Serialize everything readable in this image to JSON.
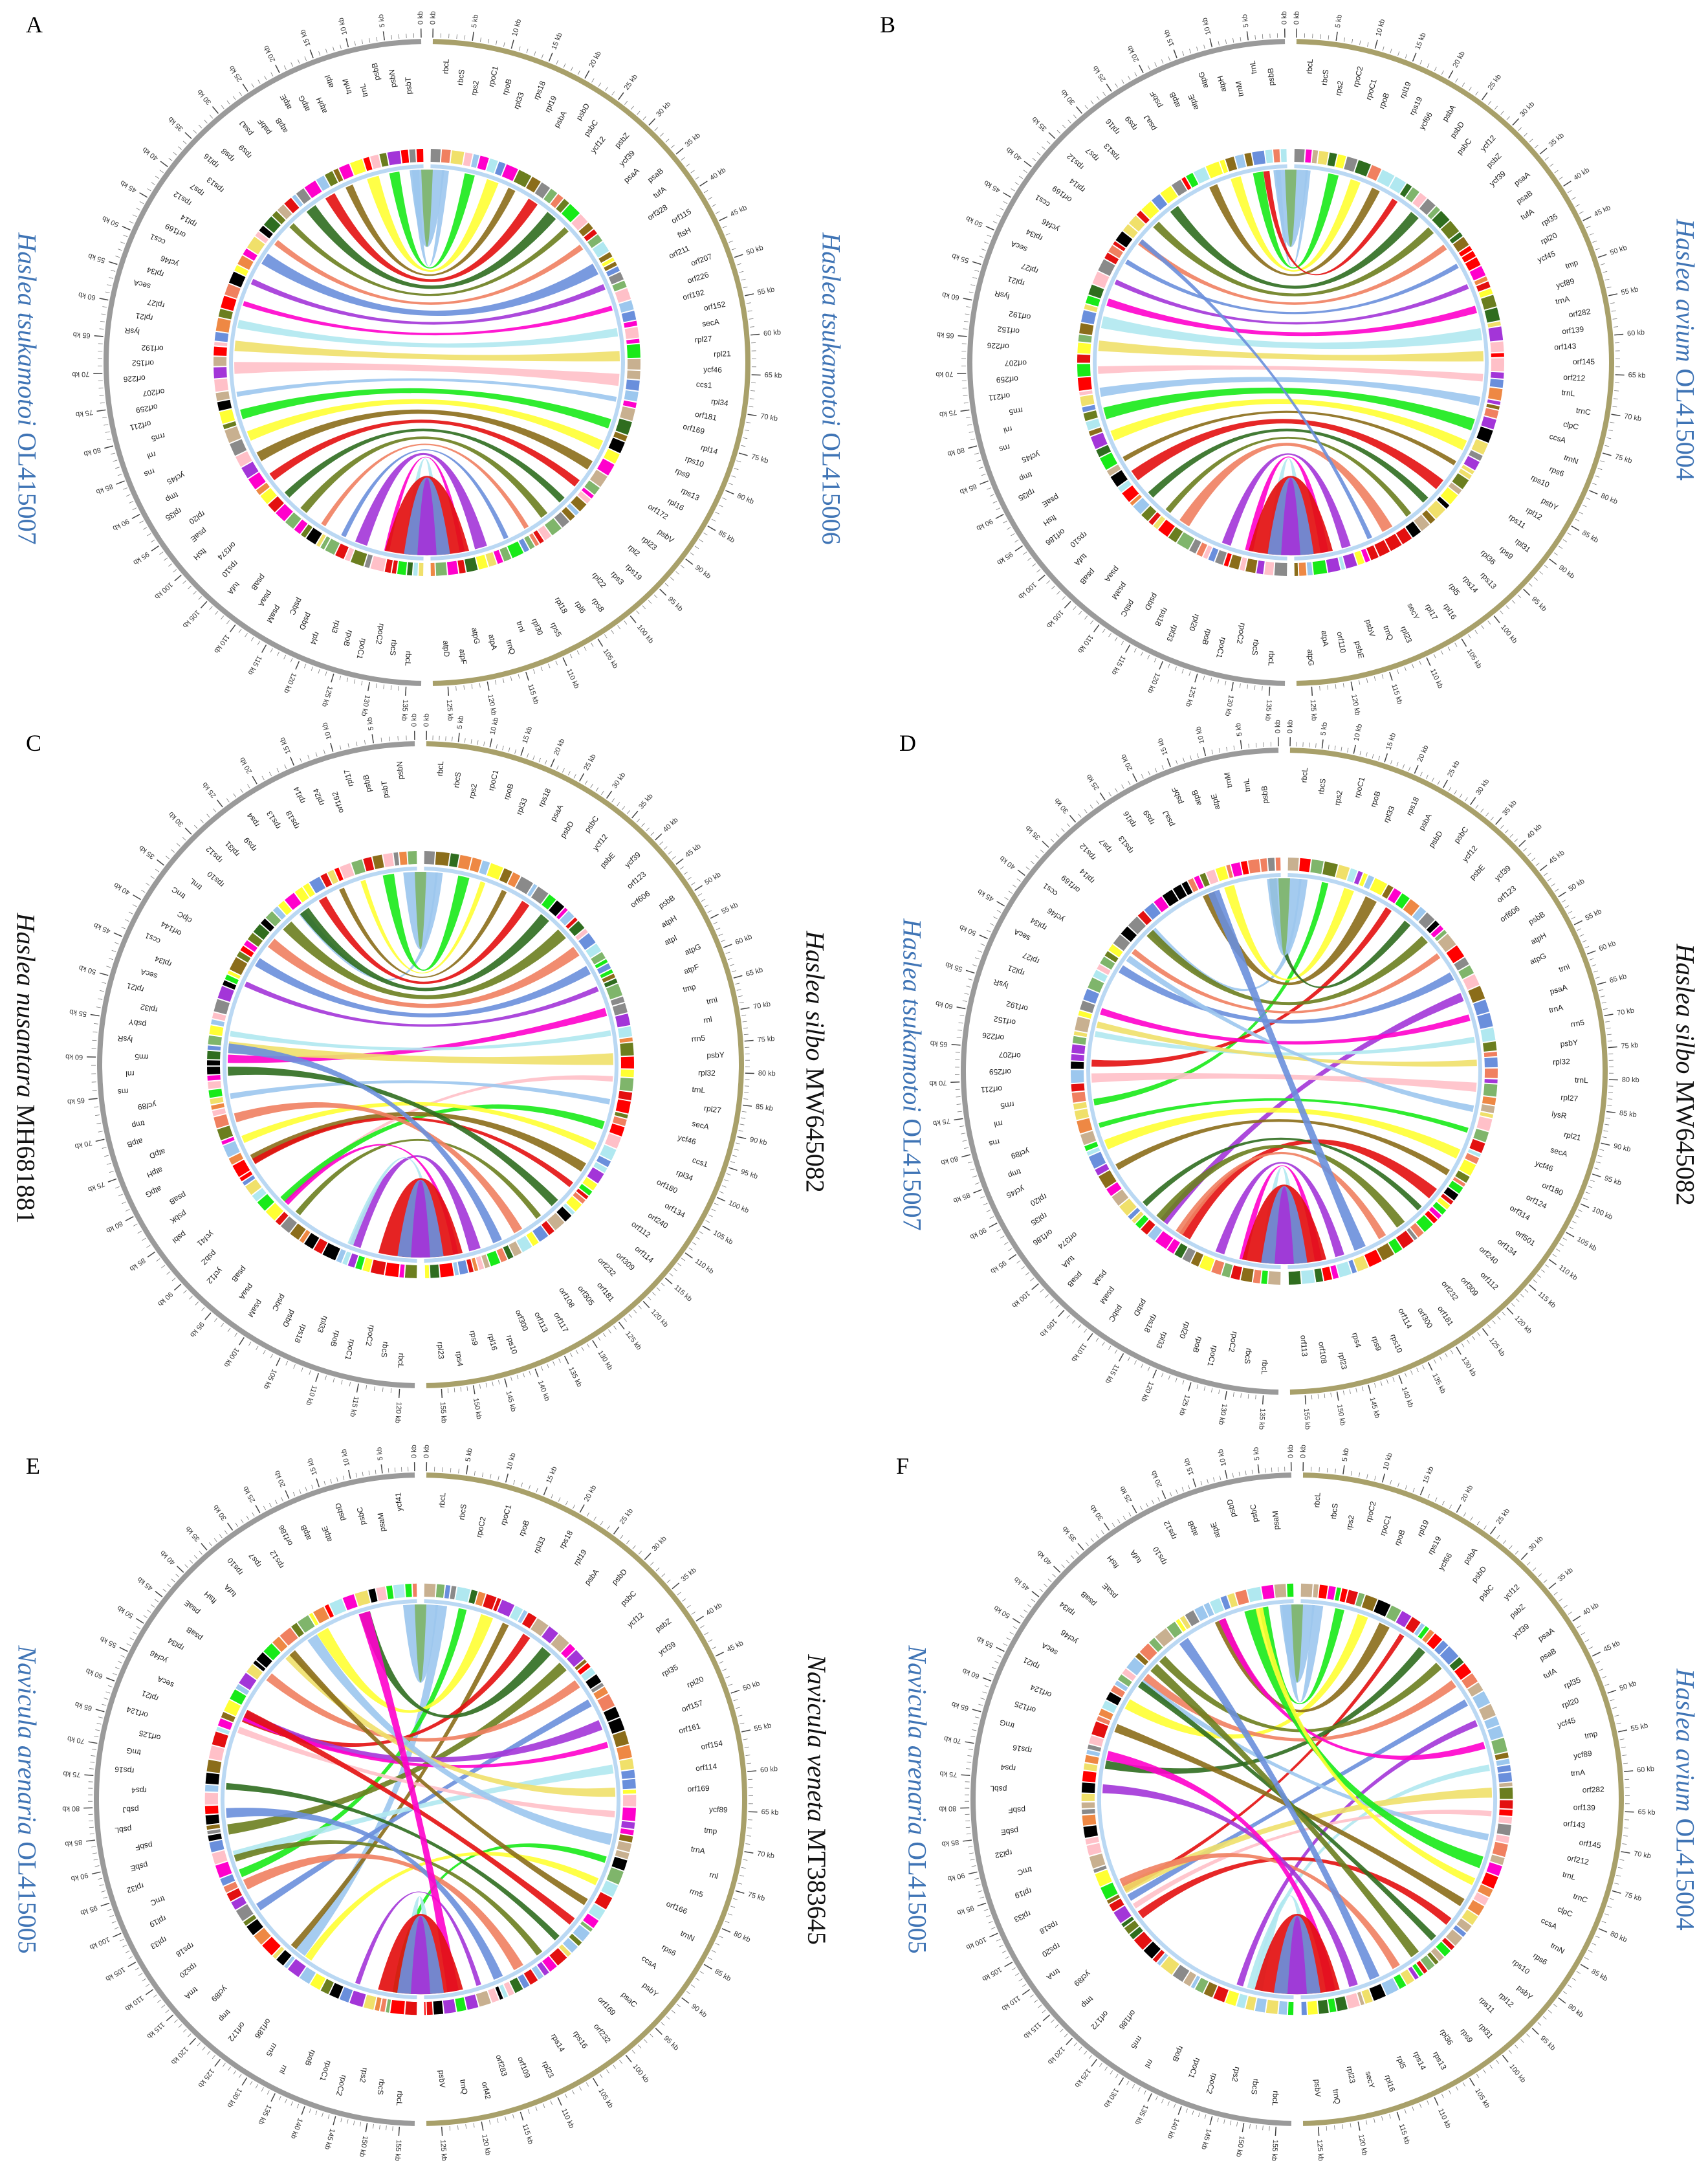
{
  "panels": [
    {
      "letter": "A",
      "left_species": "Haslea tsukamotoi",
      "left_accession": "OL415007",
      "left_color": "#3f74b5",
      "right_species": "Haslea tsukamotoi",
      "right_accession": "OL415006",
      "right_color": "#3f74b5",
      "kb_ticks_left": [
        "0 kb",
        "5 kb",
        "10 kb",
        "15 kb",
        "20 kb",
        "25 kb",
        "30 kb",
        "35 kb",
        "40 kb",
        "45 kb",
        "50 kb",
        "55 kb",
        "60 kb",
        "65 kb",
        "70 kb",
        "75 kb",
        "80 kb",
        "85 kb",
        "90 kb",
        "95 kb",
        "100 kb",
        "105 kb",
        "110 kb",
        "115 kb",
        "120 kb",
        "125 kb",
        "130 kb",
        "135 kb"
      ],
      "kb_ticks_right": [
        "0 kb",
        "5 kb",
        "10 kb",
        "15 kb",
        "20 kb",
        "25 kb",
        "30 kb",
        "35 kb",
        "40 kb",
        "45 kb",
        "50 kb",
        "55 kb",
        "60 kb",
        "65 kb",
        "70 kb",
        "75 kb",
        "80 kb",
        "85 kb",
        "90 kb",
        "95 kb",
        "100 kb",
        "105 kb",
        "110 kb",
        "115 kb",
        "120 kb",
        "125 kb"
      ],
      "left_genes": [
        "rbcL",
        "rbcS",
        "rpoC2",
        "rpoC1",
        "rpoB",
        "rpl3",
        "rpl4",
        "psbD",
        "psbC",
        "psaM",
        "psaA",
        "psaB",
        "tufA",
        "rps10",
        "orf374",
        "ftsH",
        "psaE",
        "rpl20",
        "rpl35",
        "tmp",
        "ycf45",
        "rns",
        "rnl",
        "rrn5",
        "orf211",
        "orf259",
        "orf207",
        "orf226",
        "orf152",
        "orf192",
        "lysR",
        "rpl21",
        "rpl27",
        "secA",
        "rpl34",
        "ycf46",
        "ccs1",
        "orf169",
        "rpl14",
        "rps12",
        "rps7",
        "rps13",
        "rpl16",
        "rps8",
        "rps9",
        "psaJ",
        "psbF",
        "atpB",
        "atpE",
        "atpG",
        "atpH",
        "atpI",
        "trnM",
        "trnL",
        "psbB",
        "psbN",
        "psbT"
      ],
      "right_genes": [
        "rbcL",
        "rbcS",
        "rps2",
        "rpoC1",
        "rpoB",
        "rpl33",
        "rps18",
        "rpl19",
        "psbA",
        "psbD",
        "psbC",
        "ycf12",
        "psbZ",
        "ycf39",
        "psaA",
        "psaB",
        "tufA",
        "orf328",
        "orf115",
        "ftsH",
        "orf211",
        "orf207",
        "orf226",
        "orf192",
        "orf152",
        "secA",
        "rpl27",
        "rpl21",
        "ycf46",
        "ccs1",
        "rpl34",
        "orf181",
        "orf169",
        "rpl14",
        "rps10",
        "rps9",
        "rps13",
        "rpl16",
        "orf172",
        "psbV",
        "rpl23",
        "rpl2",
        "rps19",
        "rps3",
        "rpl22",
        "rps8",
        "rpl6",
        "rpl18",
        "rps5",
        "rpl30",
        "trnI",
        "trnQ",
        "atpA",
        "atpG",
        "atpF",
        "atpD"
      ]
    },
    {
      "letter": "B",
      "left_species": "",
      "left_accession": "",
      "left_color": "#3f74b5",
      "right_species": "Haslea avium",
      "right_accession": "OL415004",
      "right_color": "#3f74b5",
      "kb_ticks_left": [
        "0 kb",
        "5 kb",
        "10 kb",
        "15 kb",
        "20 kb",
        "25 kb",
        "30 kb",
        "35 kb",
        "40 kb",
        "45 kb",
        "50 kb",
        "55 kb",
        "60 kb",
        "65 kb",
        "70 kb",
        "75 kb",
        "80 kb",
        "85 kb",
        "90 kb",
        "95 kb",
        "100 kb",
        "105 kb",
        "110 kb",
        "115 kb",
        "120 kb",
        "125 kb",
        "130 kb",
        "135 kb"
      ],
      "kb_ticks_right": [
        "0 kb",
        "5 kb",
        "10 kb",
        "15 kb",
        "20 kb",
        "25 kb",
        "30 kb",
        "35 kb",
        "40 kb",
        "45 kb",
        "50 kb",
        "55 kb",
        "60 kb",
        "65 kb",
        "70 kb",
        "75 kb",
        "80 kb",
        "85 kb",
        "90 kb",
        "95 kb",
        "100 kb",
        "105 kb",
        "110 kb",
        "115 kb",
        "120 kb",
        "125 kb"
      ],
      "left_genes": [
        "rbcL",
        "rbcS",
        "rpoC2",
        "rpoC1",
        "rpoB",
        "rpl20",
        "rpl33",
        "rps18",
        "psbD",
        "psbC",
        "psaM",
        "psaA",
        "psaB",
        "tufA",
        "rps10",
        "orf186",
        "ftsH",
        "psaE",
        "rpl35",
        "tmp",
        "ycf45",
        "rns",
        "rnl",
        "rrn5",
        "orf211",
        "orf259",
        "orf207",
        "orf226",
        "orf152",
        "orf192",
        "lysR",
        "rpl21",
        "rpl27",
        "secA",
        "rpl34",
        "ycf46",
        "ccs1",
        "orf169",
        "rpl14",
        "rps12",
        "rps7",
        "rps13",
        "rpl16",
        "rps9",
        "psaJ",
        "psbF",
        "atpB",
        "atpE",
        "atpG",
        "atpH",
        "trnM",
        "trnL",
        "psbB"
      ],
      "right_genes": [
        "rbcL",
        "rbcS",
        "rps2",
        "rpoC2",
        "rpoC1",
        "rpoB",
        "rpl19",
        "rps19",
        "ycf66",
        "psbA",
        "psbD",
        "psbC",
        "ycf12",
        "psbZ",
        "ycf39",
        "psaA",
        "psaB",
        "tufA",
        "rpl35",
        "rpl20",
        "ycf45",
        "tmp",
        "ycf89",
        "trnA",
        "orf282",
        "orf139",
        "orf143",
        "orf145",
        "orf212",
        "trnL",
        "trnC",
        "clpC",
        "ccsA",
        "trnN",
        "rps6",
        "rps10",
        "psbY",
        "rpl12",
        "rps11",
        "rpl31",
        "rps9",
        "rpl36",
        "rps13",
        "rps14",
        "rpl5",
        "rpl16",
        "rpl17",
        "secY",
        "rpl23",
        "trnQ",
        "psbV",
        "psbE",
        "orf110",
        "atpA",
        "atpG"
      ]
    },
    {
      "letter": "C",
      "left_species": "Haslea nusantara",
      "left_accession": "MH681881",
      "left_color": "#111111",
      "right_species": "Haslea silbo",
      "right_accession": "MW645082",
      "right_color": "#111111",
      "kb_ticks_left": [
        "0 kb",
        "5 kb",
        "10 kb",
        "15 kb",
        "20 kb",
        "25 kb",
        "30 kb",
        "35 kb",
        "40 kb",
        "45 kb",
        "50 kb",
        "55 kb",
        "60 kb",
        "65 kb",
        "70 kb",
        "75 kb",
        "80 kb",
        "85 kb",
        "90 kb",
        "95 kb",
        "100 kb",
        "105 kb",
        "110 kb",
        "115 kb",
        "120 kb"
      ],
      "kb_ticks_right": [
        "0 kb",
        "5 kb",
        "10 kb",
        "15 kb",
        "20 kb",
        "25 kb",
        "30 kb",
        "35 kb",
        "40 kb",
        "45 kb",
        "50 kb",
        "55 kb",
        "60 kb",
        "65 kb",
        "70 kb",
        "75 kb",
        "80 kb",
        "85 kb",
        "90 kb",
        "95 kb",
        "100 kb",
        "105 kb",
        "110 kb",
        "115 kb",
        "120 kb",
        "125 kb",
        "130 kb",
        "135 kb",
        "140 kb",
        "145 kb",
        "150 kb",
        "155 kb"
      ],
      "left_genes": [
        "rbcL",
        "rbcS",
        "rpoC2",
        "rpoC1",
        "rpoB",
        "rpl33",
        "rps18",
        "psbD",
        "psbC",
        "psaM",
        "psaA",
        "psaB",
        "ycf12",
        "psbZ",
        "ycf41",
        "psbI",
        "psbK",
        "psaB",
        "atpG",
        "atpH",
        "atpD",
        "atpB",
        "tmp",
        "ycf89",
        "rns",
        "rnl",
        "rrn5",
        "lysR",
        "psbY",
        "rpl32",
        "rpl21",
        "secA",
        "rpl34",
        "ccs1",
        "orf144",
        "clpC",
        "trnC",
        "trnL",
        "rps10",
        "rps12",
        "rpl31",
        "rps9",
        "rps4",
        "rps13",
        "rps18",
        "rpl14",
        "rpl24",
        "orf162",
        "rpl17",
        "psbB",
        "psbT",
        "psbN"
      ],
      "right_genes": [
        "rbcL",
        "rbcS",
        "rps2",
        "rpoC1",
        "rpoB",
        "rpl33",
        "rps18",
        "psaA",
        "psbD",
        "psbC",
        "ycf12",
        "psbE",
        "ycf39",
        "orf123",
        "orf606",
        "psbB",
        "atpH",
        "atpI",
        "atpG",
        "atpF",
        "tmp",
        "trnI",
        "rnl",
        "rrn5",
        "psbY",
        "rpl32",
        "trnL",
        "rpl27",
        "secA",
        "ycf46",
        "ccs1",
        "rpl34",
        "orf180",
        "orf134",
        "orf240",
        "orf112",
        "orf114",
        "orf309",
        "orf232",
        "orf181",
        "orf305",
        "orf108",
        "orf117",
        "orf113",
        "orf300",
        "rps10",
        "rpl16",
        "rps9",
        "rps4",
        "rpl23"
      ]
    },
    {
      "letter": "D",
      "left_species": "Haslea tsukamotoi",
      "left_accession": "OL415007",
      "left_color": "#3f74b5",
      "right_species": "Haslea silbo",
      "right_accession": "MW645082",
      "right_color": "#111111",
      "kb_ticks_left": [
        "0 kb",
        "5 kb",
        "10 kb",
        "15 kb",
        "20 kb",
        "25 kb",
        "30 kb",
        "35 kb",
        "40 kb",
        "45 kb",
        "50 kb",
        "55 kb",
        "60 kb",
        "65 kb",
        "70 kb",
        "75 kb",
        "80 kb",
        "85 kb",
        "90 kb",
        "95 kb",
        "100 kb",
        "105 kb",
        "110 kb",
        "115 kb",
        "120 kb",
        "125 kb",
        "130 kb",
        "135 kb"
      ],
      "kb_ticks_right": [
        "0 kb",
        "5 kb",
        "10 kb",
        "15 kb",
        "20 kb",
        "25 kb",
        "30 kb",
        "35 kb",
        "40 kb",
        "45 kb",
        "50 kb",
        "55 kb",
        "60 kb",
        "65 kb",
        "70 kb",
        "75 kb",
        "80 kb",
        "85 kb",
        "90 kb",
        "95 kb",
        "100 kb",
        "105 kb",
        "110 kb",
        "115 kb",
        "120 kb",
        "125 kb",
        "130 kb",
        "135 kb",
        "140 kb",
        "145 kb",
        "150 kb",
        "155 kb"
      ],
      "left_genes": [
        "rbcL",
        "rbcS",
        "rpoC2",
        "rpoC1",
        "rpoB",
        "rpl20",
        "rpl33",
        "rps18",
        "psbD",
        "psbC",
        "psaM",
        "psaA",
        "psaB",
        "tufA",
        "orf374",
        "orf186",
        "rpl35",
        "rpl20",
        "ycf45",
        "tmp",
        "ycf89",
        "rns",
        "rnl",
        "rrn5",
        "orf211",
        "orf259",
        "orf207",
        "orf226",
        "orf152",
        "orf192",
        "lysR",
        "rpl21",
        "rpl27",
        "secA",
        "rpl34",
        "ycf46",
        "ccs1",
        "orf169",
        "rpl14",
        "rps12",
        "rps7",
        "rps13",
        "rpl16",
        "rps9",
        "psaJ",
        "psbF",
        "atpB",
        "atpE",
        "trnM",
        "trnL",
        "psbB"
      ],
      "right_genes": [
        "rbcL",
        "rbcS",
        "rps2",
        "rpoC1",
        "rpoB",
        "rpl33",
        "rps18",
        "psbA",
        "psbD",
        "psbC",
        "ycf12",
        "psbE",
        "ycf39",
        "orf123",
        "orf606",
        "psbB",
        "atpH",
        "atpG",
        "trnI",
        "psaA",
        "trnA",
        "rrn5",
        "psbY",
        "rpl32",
        "trnL",
        "rpl27",
        "lysR",
        "rpl21",
        "secA",
        "ycf46",
        "orf180",
        "orf124",
        "orf314",
        "orf501",
        "orf134",
        "orf240",
        "orf112",
        "orf309",
        "orf232",
        "orf181",
        "orf300",
        "orf114",
        "rps10",
        "rps9",
        "rps4",
        "rpl23",
        "orf108",
        "orf113"
      ]
    },
    {
      "letter": "E",
      "left_species": "Navicula arenaria",
      "left_accession": "OL415005",
      "left_color": "#3f74b5",
      "right_species": "Navicula veneta",
      "right_accession": "MT383645",
      "right_color": "#111111",
      "kb_ticks_left": [
        "0 kb",
        "5 kb",
        "10 kb",
        "15 kb",
        "20 kb",
        "25 kb",
        "30 kb",
        "35 kb",
        "40 kb",
        "45 kb",
        "50 kb",
        "55 kb",
        "60 kb",
        "65 kb",
        "70 kb",
        "75 kb",
        "80 kb",
        "85 kb",
        "90 kb",
        "95 kb",
        "100 kb",
        "105 kb",
        "110 kb",
        "115 kb",
        "120 kb",
        "125 kb",
        "130 kb",
        "135 kb",
        "140 kb",
        "145 kb",
        "150 kb",
        "155 kb"
      ],
      "kb_ticks_right": [
        "0 kb",
        "5 kb",
        "10 kb",
        "15 kb",
        "20 kb",
        "25 kb",
        "30 kb",
        "35 kb",
        "40 kb",
        "45 kb",
        "50 kb",
        "55 kb",
        "60 kb",
        "65 kb",
        "70 kb",
        "75 kb",
        "80 kb",
        "85 kb",
        "90 kb",
        "95 kb",
        "100 kb",
        "105 kb",
        "110 kb",
        "115 kb",
        "120 kb",
        "125 kb"
      ],
      "left_genes": [
        "rbcL",
        "rbcS",
        "rps2",
        "rpoC2",
        "rpoC1",
        "rpoB",
        "rnl",
        "rrn5",
        "orf186",
        "orf172",
        "tmp",
        "ycf89",
        "trnA",
        "rps20",
        "rps18",
        "rpl33",
        "rpl19",
        "trnC",
        "rpl32",
        "psbE",
        "psbF",
        "psbL",
        "psbJ",
        "rps4",
        "rps16",
        "tmG",
        "orf125",
        "orf124",
        "rpl21",
        "secA",
        "ycf46",
        "rpl34",
        "psaB",
        "psaE",
        "ftsH",
        "tufA",
        "rps10",
        "rps7",
        "rps12",
        "orf186",
        "atpB",
        "atpE",
        "psbD",
        "psbC",
        "psaM",
        "ycf41"
      ],
      "right_genes": [
        "rbcL",
        "rbcS",
        "rpoC2",
        "rpoC1",
        "rpoB",
        "rpl33",
        "rps18",
        "rpl19",
        "psbA",
        "psbD",
        "psbC",
        "ycf12",
        "psbZ",
        "ycf39",
        "rpl35",
        "rpl20",
        "orf157",
        "orf161",
        "orf154",
        "orf114",
        "orf169",
        "ycf89",
        "tmp",
        "trnA",
        "rnl",
        "rrn5",
        "orf166",
        "trnN",
        "rps6",
        "ccsA",
        "psbY",
        "psaC",
        "orf169",
        "orf232",
        "rps16",
        "rps14",
        "rpl23",
        "orf109",
        "orf283",
        "orf42",
        "trnQ",
        "psbV"
      ]
    },
    {
      "letter": "F",
      "left_species": "Navicula arenaria",
      "left_accession": "OL415005",
      "left_color": "#3f74b5",
      "right_species": "Haslea avium",
      "right_accession": "OL415004",
      "right_color": "#3f74b5",
      "kb_ticks_left": [
        "0 kb",
        "5 kb",
        "10 kb",
        "15 kb",
        "20 kb",
        "25 kb",
        "30 kb",
        "35 kb",
        "40 kb",
        "45 kb",
        "50 kb",
        "55 kb",
        "60 kb",
        "65 kb",
        "70 kb",
        "75 kb",
        "80 kb",
        "85 kb",
        "90 kb",
        "95 kb",
        "100 kb",
        "105 kb",
        "110 kb",
        "115 kb",
        "120 kb",
        "125 kb",
        "130 kb",
        "135 kb",
        "140 kb",
        "145 kb",
        "150 kb",
        "155 kb"
      ],
      "kb_ticks_right": [
        "0 kb",
        "5 kb",
        "10 kb",
        "15 kb",
        "20 kb",
        "25 kb",
        "30 kb",
        "35 kb",
        "40 kb",
        "45 kb",
        "50 kb",
        "55 kb",
        "60 kb",
        "65 kb",
        "70 kb",
        "75 kb",
        "80 kb",
        "85 kb",
        "90 kb",
        "95 kb",
        "100 kb",
        "105 kb",
        "110 kb",
        "115 kb",
        "120 kb",
        "125 kb"
      ],
      "left_genes": [
        "rbcL",
        "rbcS",
        "rps2",
        "rpoC2",
        "rpoC1",
        "rpoB",
        "rnl",
        "rrn5",
        "orf186",
        "orf172",
        "tmp",
        "ycf89",
        "trnA",
        "rps20",
        "rps18",
        "rpl33",
        "rpl19",
        "trnC",
        "rpl32",
        "psbE",
        "psbF",
        "psbL",
        "rps4",
        "rps16",
        "trnG",
        "orf125",
        "orf124",
        "rpl21",
        "secA",
        "ycf46",
        "rpl34",
        "psaB",
        "psaE",
        "ftsH",
        "tufA",
        "rps10",
        "rps12",
        "atpB",
        "atpE",
        "psbD",
        "psbC",
        "psaM"
      ],
      "right_genes": [
        "rbcL",
        "rbcS",
        "rps2",
        "rpoC2",
        "rpoC1",
        "rpoB",
        "rpl19",
        "rps19",
        "ycf66",
        "psbA",
        "psbD",
        "psbC",
        "ycf12",
        "psbZ",
        "ycf39",
        "psaA",
        "psaB",
        "tufA",
        "rpl35",
        "rpl20",
        "ycf45",
        "tmp",
        "ycf89",
        "trnA",
        "orf282",
        "orf139",
        "orf143",
        "orf145",
        "orf212",
        "trnL",
        "trnC",
        "clpC",
        "ccsA",
        "trnN",
        "rps6",
        "rps10",
        "psbY",
        "rpl12",
        "rps11",
        "rpl31",
        "rps9",
        "rpl36",
        "rps13",
        "rps14",
        "rpl5",
        "rpl16",
        "secY",
        "rpl23",
        "trnQ",
        "psbV"
      ]
    }
  ],
  "colors": {
    "left_ring": "#9a9a9a",
    "right_ring": "#a8a06a",
    "palette": [
      "#9cc7ee",
      "#7fb56b",
      "#18ea18",
      "#e31010",
      "#ff0000",
      "#ffff33",
      "#f0e06a",
      "#8b6d1a",
      "#6b7e1f",
      "#2f6d1f",
      "#ff00cc",
      "#a335d8",
      "#6a8fdc",
      "#f08060",
      "#b0e8f0",
      "#ffc0c8",
      "#000000",
      "#ee8844",
      "#c8b090",
      "#8a8a8a"
    ]
  }
}
